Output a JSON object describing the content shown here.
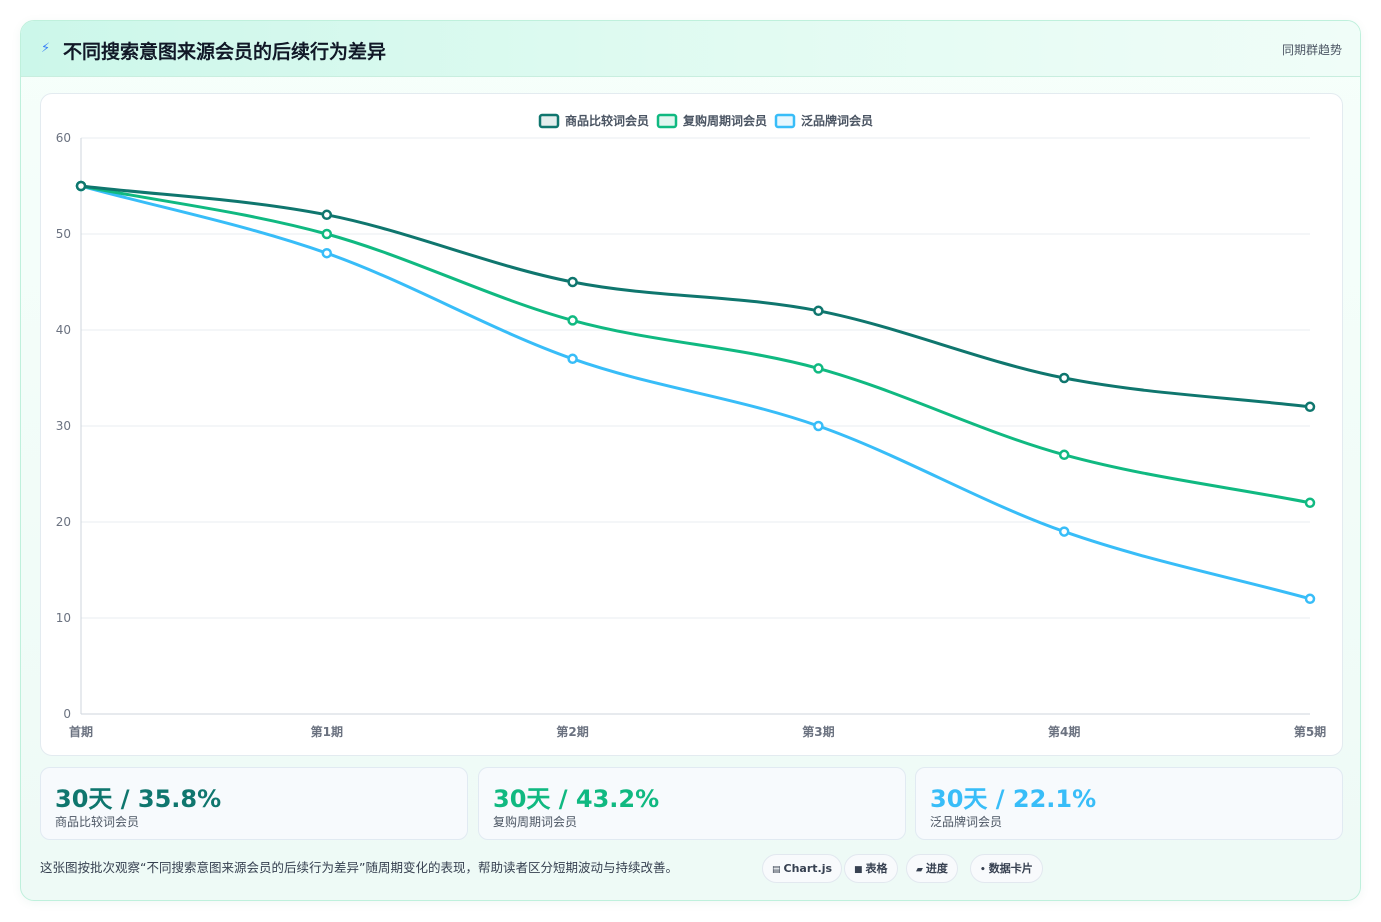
{
  "header": {
    "title": "不同搜索意图来源会员的后续行为差异",
    "badge": "同期群趋势",
    "icon": "lightning-icon"
  },
  "chart_data": {
    "type": "line",
    "categories": [
      "首期",
      "第1期",
      "第2期",
      "第3期",
      "第4期",
      "第5期"
    ],
    "series": [
      {
        "name": "商品比较词会员",
        "color": "#0f766e",
        "values": [
          55,
          52,
          45,
          42,
          35,
          32
        ]
      },
      {
        "name": "复购周期词会员",
        "color": "#10b981",
        "values": [
          55,
          50,
          41,
          36,
          27,
          22
        ]
      },
      {
        "name": "泛品牌词会员",
        "color": "#38bdf8",
        "values": [
          55,
          48,
          37,
          30,
          19,
          12
        ]
      }
    ],
    "ylim": [
      0,
      60
    ],
    "yticks": [
      0,
      10,
      20,
      30,
      40,
      50,
      60
    ],
    "grid": true,
    "legend": "top-center",
    "smooth": true
  },
  "stats": [
    {
      "value": "30天 / 35.8%",
      "label": "商品比较词会员",
      "color": "#0f766e"
    },
    {
      "value": "30天 / 43.2%",
      "label": "复购周期词会员",
      "color": "#10b981"
    },
    {
      "value": "30天 / 22.1%",
      "label": "泛品牌词会员",
      "color": "#38bdf8"
    }
  ],
  "footnote": "这张图按批次观察“不同搜索意图来源会员的后续行为差异”随周期变化的表现，帮助读者区分短期波动与持续改善。",
  "pills": [
    {
      "label": "Chart.js",
      "icon": "chart-icon"
    },
    {
      "label": "表格",
      "icon": "table-icon"
    },
    {
      "label": "进度",
      "icon": "progress-icon"
    },
    {
      "label": "数据卡片",
      "icon": "card-icon"
    }
  ]
}
